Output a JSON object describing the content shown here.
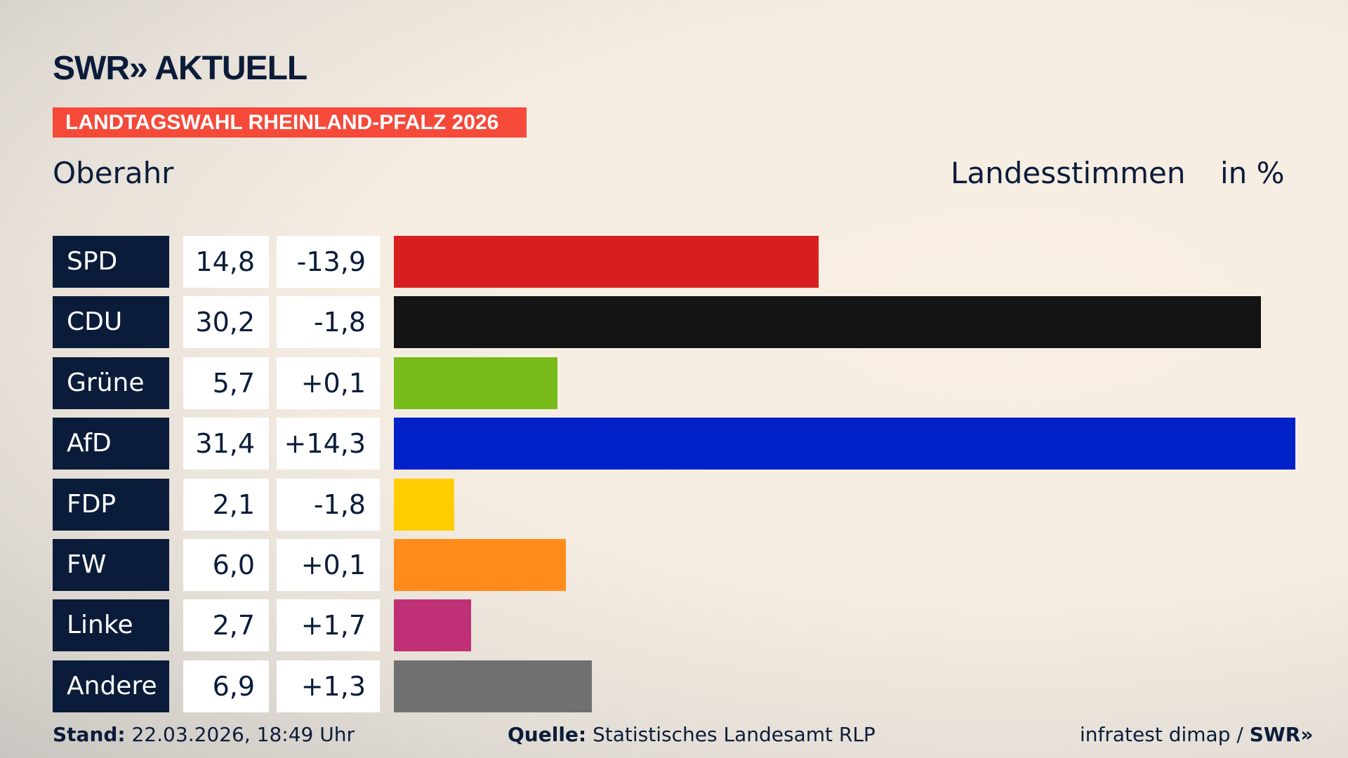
{
  "header": {
    "logo": "SWR» AKTUELL",
    "banner": "LANDTAGSWAHL RHEINLAND-PFALZ 2026",
    "region": "Oberahr",
    "metric": "Landesstimmen",
    "unit": "in %"
  },
  "chart_data": {
    "type": "bar",
    "orientation": "horizontal",
    "title": "Landesstimmen",
    "ylabel": "in %",
    "xlim": [
      0,
      31.4
    ],
    "categories": [
      "SPD",
      "CDU",
      "Grüne",
      "AfD",
      "FDP",
      "FW",
      "Linke",
      "Andere"
    ],
    "values": [
      14.8,
      30.2,
      5.7,
      31.4,
      2.1,
      6.0,
      2.7,
      6.9
    ],
    "value_labels": [
      "14,8",
      "30,2",
      "5,7",
      "31,4",
      "2,1",
      "6,0",
      "2,7",
      "6,9"
    ],
    "changes": [
      "-13,9",
      "-1,8",
      "+0,1",
      "+14,3",
      "-1,8",
      "+0,1",
      "+1,7",
      "+1,3"
    ],
    "colors": [
      "#d81f20",
      "#141414",
      "#78bc1b",
      "#0020c8",
      "#ffcd00",
      "#ff8c1a",
      "#bf3076",
      "#707070"
    ]
  },
  "footer": {
    "stand_label": "Stand:",
    "stand": "22.03.2026, 18:49 Uhr",
    "source_label": "Quelle:",
    "source": "Statistisches Landesamt RLP",
    "credit": "infratest dimap / ",
    "credit_logo": "SWR»"
  }
}
